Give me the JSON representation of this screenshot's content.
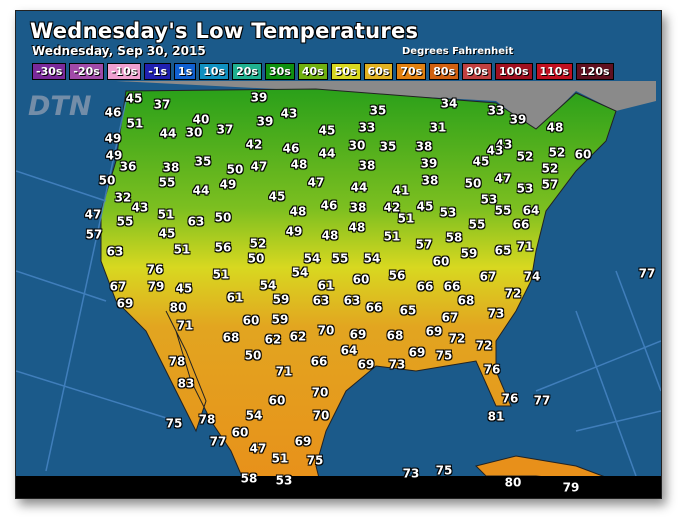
{
  "header": {
    "title": "Wednesday's Low Temperatures",
    "date": "Wednesday, Sep 30, 2015",
    "units": "Degrees Fahrenheit",
    "logo": "DTN"
  },
  "legend": [
    {
      "label": "-30s",
      "color": "#7a2a9a"
    },
    {
      "label": "-20s",
      "color": "#a04aa8"
    },
    {
      "label": "-10s",
      "color": "#f0a0d0"
    },
    {
      "label": "-1s",
      "color": "#2020b0"
    },
    {
      "label": "1s",
      "color": "#1060d0"
    },
    {
      "label": "10s",
      "color": "#1090c0"
    },
    {
      "label": "20s",
      "color": "#20b090"
    },
    {
      "label": "30s",
      "color": "#109010"
    },
    {
      "label": "40s",
      "color": "#70b010"
    },
    {
      "label": "50s",
      "color": "#d8d820"
    },
    {
      "label": "60s",
      "color": "#e0b020"
    },
    {
      "label": "70s",
      "color": "#e08010"
    },
    {
      "label": "80s",
      "color": "#d06010"
    },
    {
      "label": "90s",
      "color": "#c04040"
    },
    {
      "label": "100s",
      "color": "#a01020"
    },
    {
      "label": "110s",
      "color": "#c01020"
    },
    {
      "label": "120s",
      "color": "#601020"
    }
  ],
  "temperatures": [
    "45",
    "37",
    "46",
    "40",
    "51",
    "44",
    "30",
    "37",
    "49",
    "39",
    "43",
    "39",
    "45",
    "35",
    "34",
    "33",
    "39",
    "48",
    "33",
    "31",
    "43",
    "42",
    "46",
    "44",
    "30",
    "35",
    "38",
    "45",
    "43",
    "52",
    "52",
    "60",
    "49",
    "36",
    "38",
    "35",
    "50",
    "47",
    "48",
    "38",
    "39",
    "52",
    "50",
    "55",
    "44",
    "49",
    "47",
    "44",
    "41",
    "38",
    "50",
    "53",
    "47",
    "53",
    "57",
    "32",
    "45",
    "46",
    "38",
    "42",
    "45",
    "53",
    "55",
    "64",
    "47",
    "43",
    "51",
    "55",
    "63",
    "50",
    "48",
    "48",
    "51",
    "66",
    "57",
    "45",
    "49",
    "48",
    "51",
    "58",
    "55",
    "52",
    "57",
    "65",
    "71",
    "63",
    "51",
    "56",
    "50",
    "59",
    "54",
    "55",
    "54",
    "60",
    "76",
    "54",
    "56",
    "60",
    "67",
    "74",
    "77",
    "67",
    "79",
    "45",
    "51",
    "54",
    "61",
    "66",
    "66",
    "72",
    "69",
    "80",
    "61",
    "59",
    "63",
    "63",
    "66",
    "65",
    "68",
    "67",
    "73",
    "71",
    "60",
    "59",
    "70",
    "69",
    "68",
    "69",
    "72",
    "72",
    "68",
    "62",
    "62",
    "64",
    "69",
    "69",
    "75",
    "73",
    "76",
    "78",
    "50",
    "66",
    "71",
    "83",
    "70",
    "60",
    "76",
    "77",
    "81",
    "78",
    "54",
    "70",
    "75",
    "60",
    "77",
    "69",
    "47",
    "51",
    "75",
    "73",
    "75",
    "58",
    "53",
    "80",
    "79"
  ]
}
